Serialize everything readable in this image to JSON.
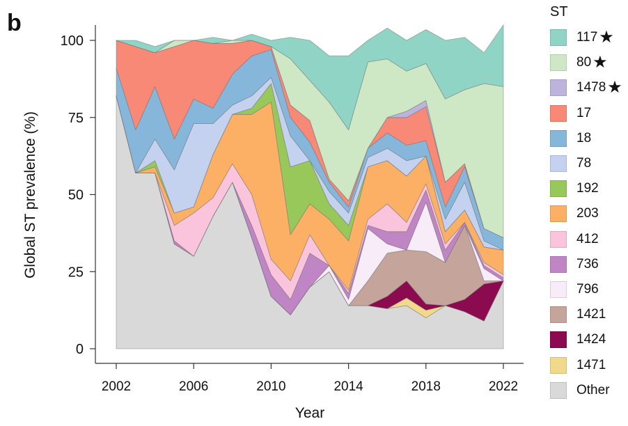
{
  "panel_label": "b",
  "legend_title": "ST",
  "chart_data": {
    "type": "area",
    "stacked": true,
    "xlabel": "Year",
    "ylabel": "Global ST prevalence (%)",
    "ylim": [
      0,
      100
    ],
    "xlim": [
      2002,
      2022
    ],
    "xticks": [
      "2002",
      "2006",
      "2010",
      "2014",
      "2018",
      "2022"
    ],
    "yticks": [
      "0",
      "25",
      "50",
      "75",
      "100"
    ],
    "legend_position": "right",
    "grid": false,
    "x": [
      2002,
      2003,
      2004,
      2005,
      2006,
      2007,
      2008,
      2009,
      2010,
      2011,
      2012,
      2013,
      2014,
      2015,
      2016,
      2017,
      2018,
      2019,
      2020,
      2021,
      2022
    ],
    "series": [
      {
        "name": "Other",
        "color": "#d9d9d9",
        "values": [
          82,
          57,
          57,
          34,
          30,
          43,
          54,
          36,
          17,
          11,
          20,
          25,
          14,
          14,
          13,
          14,
          10,
          14,
          12,
          9,
          22
        ]
      },
      {
        "name": "1471",
        "color": "#f2d88a",
        "values": [
          0,
          0,
          0,
          0,
          0,
          0,
          0,
          0,
          0,
          0,
          0,
          0,
          0,
          0,
          0,
          2.5,
          2.5,
          0,
          0,
          0,
          0
        ]
      },
      {
        "name": "1424",
        "color": "#8b0a50",
        "values": [
          0,
          0,
          0,
          0,
          0,
          0,
          0,
          0,
          0,
          0,
          0,
          0,
          0,
          0,
          4,
          5.5,
          2,
          0,
          4,
          12,
          0
        ]
      },
      {
        "name": "1421",
        "color": "#c4a49b",
        "values": [
          0,
          0,
          0,
          0,
          0,
          0,
          0,
          0,
          0,
          0,
          0,
          0,
          0,
          8,
          14,
          10,
          17,
          14,
          24,
          1,
          0
        ]
      },
      {
        "name": "796",
        "color": "#f7ecf7",
        "values": [
          0,
          0,
          0,
          0,
          0,
          0,
          0,
          0,
          0,
          0,
          0,
          2,
          2,
          17,
          3,
          0,
          16,
          0,
          0,
          4,
          0
        ]
      },
      {
        "name": "736",
        "color": "#bf85c5",
        "values": [
          0,
          0,
          0,
          1,
          0,
          0,
          0,
          4,
          7,
          5,
          11,
          0,
          2,
          1,
          4,
          6,
          4,
          4,
          1,
          1,
          1
        ]
      },
      {
        "name": "412",
        "color": "#f9c4dc",
        "values": [
          0,
          0,
          0,
          5,
          14,
          6,
          6,
          10,
          5,
          6,
          6,
          0,
          1,
          2,
          9,
          3,
          2,
          2,
          0,
          1,
          1
        ]
      },
      {
        "name": "203",
        "color": "#fbb065",
        "values": [
          0,
          0,
          2,
          4,
          2,
          14,
          16,
          26,
          51,
          15,
          10,
          15,
          16,
          17,
          14,
          15,
          9,
          4,
          4,
          5,
          8
        ]
      },
      {
        "name": "192",
        "color": "#98c85a",
        "values": [
          0,
          0,
          2,
          0,
          0,
          0,
          0,
          2,
          6,
          22,
          14,
          5,
          5,
          0,
          0,
          0,
          0,
          0,
          0,
          0,
          0
        ]
      },
      {
        "name": "78",
        "color": "#c5d2ef",
        "values": [
          0,
          0,
          7,
          14,
          27,
          10,
          3,
          4,
          2,
          10,
          0,
          4,
          4,
          3,
          4,
          5,
          0,
          4,
          9,
          2,
          0
        ]
      },
      {
        "name": "18",
        "color": "#86b6da",
        "values": [
          9,
          14,
          17,
          10,
          8,
          5,
          10,
          13,
          9,
          6,
          6,
          3,
          2,
          3,
          5,
          5,
          5,
          4,
          5,
          4,
          4
        ]
      },
      {
        "name": "17",
        "color": "#f78976",
        "values": [
          9,
          27,
          11,
          30,
          19,
          21,
          10,
          5,
          1,
          4,
          7,
          1,
          2,
          0,
          5,
          9,
          11,
          8,
          1,
          0,
          0
        ]
      },
      {
        "name": "1478",
        "color": "#bcb4dc",
        "values": [
          0,
          0,
          0,
          0,
          0,
          0,
          0,
          0,
          0,
          0,
          0,
          0,
          0,
          0,
          0,
          2,
          2,
          0,
          0,
          0,
          0
        ]
      },
      {
        "name": "80",
        "color": "#cee8c6",
        "values": [
          0,
          0,
          0,
          2,
          0,
          0,
          1,
          0,
          0,
          15,
          13,
          25,
          23,
          28,
          19,
          13,
          12,
          27,
          24,
          47,
          49
        ]
      },
      {
        "name": "117",
        "color": "#8fd4c5",
        "values": [
          0,
          2,
          2,
          0,
          0,
          2,
          0,
          2,
          2,
          7,
          13,
          15,
          24,
          7,
          10,
          10,
          11,
          19,
          17,
          10,
          20
        ]
      }
    ],
    "legend_entries": [
      {
        "name": "117",
        "color": "#8fd4c5",
        "icon": "star-icon"
      },
      {
        "name": "80",
        "color": "#cee8c6",
        "icon": "star-icon"
      },
      {
        "name": "1478",
        "color": "#bcb4dc",
        "icon": "star-icon"
      },
      {
        "name": "17",
        "color": "#f78976"
      },
      {
        "name": "18",
        "color": "#86b6da"
      },
      {
        "name": "78",
        "color": "#c5d2ef"
      },
      {
        "name": "192",
        "color": "#98c85a"
      },
      {
        "name": "203",
        "color": "#fbb065"
      },
      {
        "name": "412",
        "color": "#f9c4dc"
      },
      {
        "name": "736",
        "color": "#bf85c5"
      },
      {
        "name": "796",
        "color": "#f7ecf7"
      },
      {
        "name": "1421",
        "color": "#c4a49b"
      },
      {
        "name": "1424",
        "color": "#8b0a50"
      },
      {
        "name": "1471",
        "color": "#f2d88a"
      },
      {
        "name": "Other",
        "color": "#d9d9d9"
      }
    ]
  }
}
